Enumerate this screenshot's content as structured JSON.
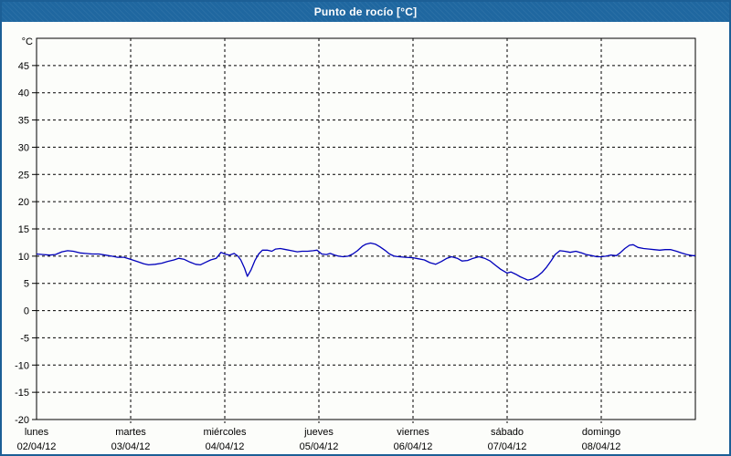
{
  "title": "Punto de rocío [°C]",
  "colors": {
    "frame_blue": "#1c5f96",
    "titlebar_blue": "#1f67a0",
    "title_text": "#ffffff",
    "background": "#fcfdfa",
    "axis_black": "#000000",
    "line_blue": "#0000bb"
  },
  "chart_data": {
    "type": "line",
    "title": "Punto de rocío [°C]",
    "ylabel": "°C",
    "ylim": [
      -20,
      50
    ],
    "yticks": [
      45,
      40,
      35,
      30,
      25,
      20,
      15,
      10,
      5,
      0,
      -5,
      -10,
      -15,
      -20
    ],
    "grid": "dashed",
    "legend_position": "none",
    "x_axis_days": [
      {
        "name": "lunes",
        "date": "02/04/12"
      },
      {
        "name": "martes",
        "date": "03/04/12"
      },
      {
        "name": "miércoles",
        "date": "04/04/12"
      },
      {
        "name": "jueves",
        "date": "05/04/12"
      },
      {
        "name": "viernes",
        "date": "06/04/12"
      },
      {
        "name": "sábado",
        "date": "07/04/12"
      },
      {
        "name": "domingo",
        "date": "08/04/12"
      }
    ],
    "series": [
      {
        "name": "Punto de rocío",
        "color": "#0000bb",
        "points": [
          [
            0,
            10.4
          ],
          [
            0.07,
            10.3
          ],
          [
            0.14,
            10.2
          ],
          [
            0.2,
            10.3
          ],
          [
            0.27,
            10.8
          ],
          [
            0.33,
            11.0
          ],
          [
            0.39,
            10.9
          ],
          [
            0.46,
            10.6
          ],
          [
            0.52,
            10.5
          ],
          [
            0.59,
            10.4
          ],
          [
            0.66,
            10.4
          ],
          [
            0.73,
            10.2
          ],
          [
            0.8,
            10.0
          ],
          [
            0.86,
            9.8
          ],
          [
            0.93,
            9.8
          ],
          [
            1.0,
            9.4
          ],
          [
            1.07,
            9.0
          ],
          [
            1.14,
            8.6
          ],
          [
            1.19,
            8.4
          ],
          [
            1.26,
            8.5
          ],
          [
            1.33,
            8.7
          ],
          [
            1.39,
            9.0
          ],
          [
            1.46,
            9.3
          ],
          [
            1.51,
            9.6
          ],
          [
            1.57,
            9.4
          ],
          [
            1.63,
            8.9
          ],
          [
            1.69,
            8.5
          ],
          [
            1.74,
            8.4
          ],
          [
            1.8,
            8.9
          ],
          [
            1.85,
            9.3
          ],
          [
            1.91,
            9.6
          ],
          [
            1.96,
            10.7
          ],
          [
            2.0,
            10.4
          ],
          [
            2.05,
            10.2
          ],
          [
            2.1,
            10.5
          ],
          [
            2.14,
            10.0
          ],
          [
            2.17,
            9.3
          ],
          [
            2.21,
            7.8
          ],
          [
            2.24,
            6.3
          ],
          [
            2.28,
            7.5
          ],
          [
            2.32,
            9.2
          ],
          [
            2.36,
            10.4
          ],
          [
            2.4,
            11.1
          ],
          [
            2.45,
            11.1
          ],
          [
            2.5,
            10.9
          ],
          [
            2.54,
            11.3
          ],
          [
            2.59,
            11.4
          ],
          [
            2.65,
            11.2
          ],
          [
            2.71,
            11.0
          ],
          [
            2.77,
            10.8
          ],
          [
            2.82,
            10.9
          ],
          [
            2.88,
            10.9
          ],
          [
            2.94,
            11.0
          ],
          [
            2.98,
            11.1
          ],
          [
            3.03,
            10.4
          ],
          [
            3.08,
            10.3
          ],
          [
            3.12,
            10.5
          ],
          [
            3.17,
            10.2
          ],
          [
            3.21,
            10.0
          ],
          [
            3.26,
            9.9
          ],
          [
            3.31,
            10.0
          ],
          [
            3.36,
            10.4
          ],
          [
            3.41,
            11.0
          ],
          [
            3.46,
            11.8
          ],
          [
            3.5,
            12.2
          ],
          [
            3.55,
            12.4
          ],
          [
            3.6,
            12.2
          ],
          [
            3.65,
            11.7
          ],
          [
            3.7,
            11.1
          ],
          [
            3.75,
            10.4
          ],
          [
            3.8,
            10.0
          ],
          [
            3.85,
            9.9
          ],
          [
            3.92,
            9.8
          ],
          [
            4.0,
            9.7
          ],
          [
            4.06,
            9.5
          ],
          [
            4.12,
            9.3
          ],
          [
            4.18,
            8.8
          ],
          [
            4.24,
            8.5
          ],
          [
            4.3,
            9.0
          ],
          [
            4.36,
            9.6
          ],
          [
            4.41,
            9.9
          ],
          [
            4.47,
            9.6
          ],
          [
            4.52,
            9.1
          ],
          [
            4.58,
            9.2
          ],
          [
            4.64,
            9.6
          ],
          [
            4.7,
            9.9
          ],
          [
            4.76,
            9.6
          ],
          [
            4.82,
            9.1
          ],
          [
            4.87,
            8.4
          ],
          [
            4.93,
            7.6
          ],
          [
            5.0,
            6.9
          ],
          [
            5.04,
            7.1
          ],
          [
            5.09,
            6.7
          ],
          [
            5.14,
            6.2
          ],
          [
            5.18,
            5.9
          ],
          [
            5.22,
            5.6
          ],
          [
            5.27,
            5.8
          ],
          [
            5.32,
            6.3
          ],
          [
            5.37,
            7.0
          ],
          [
            5.42,
            8.0
          ],
          [
            5.47,
            9.2
          ],
          [
            5.51,
            10.3
          ],
          [
            5.56,
            11.0
          ],
          [
            5.61,
            10.9
          ],
          [
            5.67,
            10.7
          ],
          [
            5.73,
            10.9
          ],
          [
            5.79,
            10.6
          ],
          [
            5.84,
            10.3
          ],
          [
            5.9,
            10.1
          ],
          [
            5.95,
            9.9
          ],
          [
            6.0,
            9.9
          ],
          [
            6.05,
            10.0
          ],
          [
            6.1,
            10.2
          ],
          [
            6.16,
            10.1
          ],
          [
            6.2,
            10.6
          ],
          [
            6.25,
            11.4
          ],
          [
            6.3,
            12.0
          ],
          [
            6.34,
            12.1
          ],
          [
            6.39,
            11.6
          ],
          [
            6.45,
            11.4
          ],
          [
            6.51,
            11.3
          ],
          [
            6.56,
            11.2
          ],
          [
            6.62,
            11.1
          ],
          [
            6.68,
            11.2
          ],
          [
            6.74,
            11.2
          ],
          [
            6.8,
            10.9
          ],
          [
            6.85,
            10.6
          ],
          [
            6.91,
            10.3
          ],
          [
            6.97,
            10.1
          ],
          [
            7.0,
            10.1
          ]
        ]
      }
    ]
  }
}
